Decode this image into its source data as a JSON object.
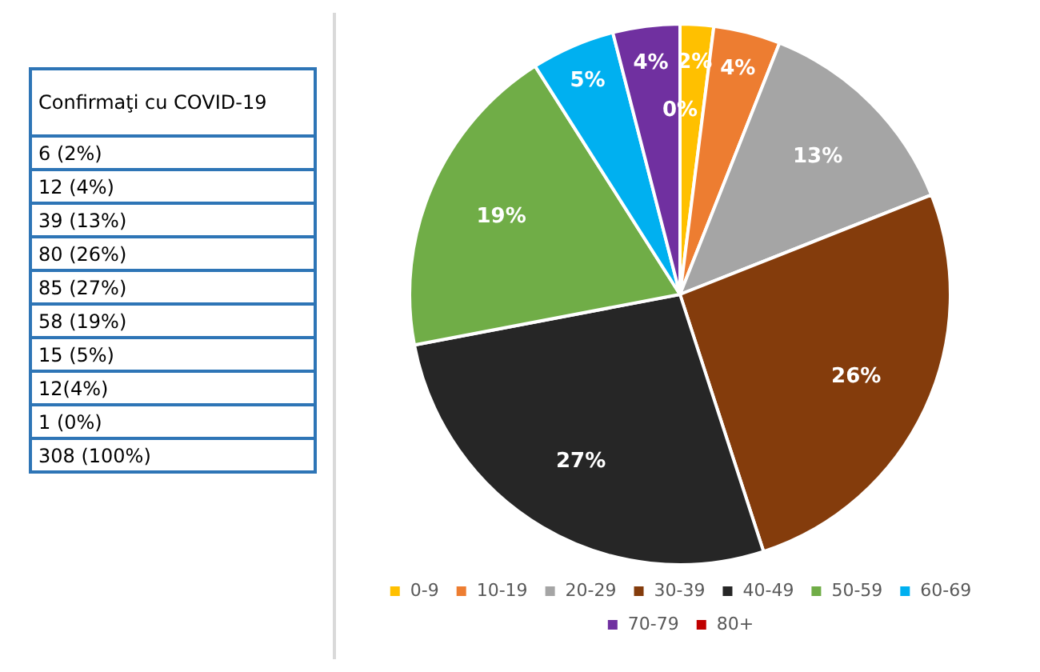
{
  "chart_data": {
    "type": "pie",
    "categories": [
      "0-9",
      "10-19",
      "20-29",
      "30-39",
      "40-49",
      "50-59",
      "60-69",
      "70-79",
      "80+"
    ],
    "values": [
      2,
      4,
      13,
      26,
      27,
      19,
      5,
      4,
      0
    ],
    "colors": [
      "#ffc000",
      "#ed7d31",
      "#a5a5a5",
      "#843c0c",
      "#262626",
      "#70ad47",
      "#00b0f0",
      "#7030a0",
      "#c00000"
    ],
    "value_labels": [
      "2%",
      "4%",
      "13%",
      "26%",
      "27%",
      "19%",
      "5%",
      "4%",
      "0%"
    ],
    "legend": "bottom",
    "annotations": [
      "Confirmaţi cu COVID-19",
      "6 (2%)",
      "12 (4%)",
      "39 (13%)",
      "80 (26%)",
      "85 (27%)",
      "58 (19%)",
      "15 (5%)",
      "12(4%)",
      "1 (0%)",
      "308 (100%)"
    ]
  }
}
